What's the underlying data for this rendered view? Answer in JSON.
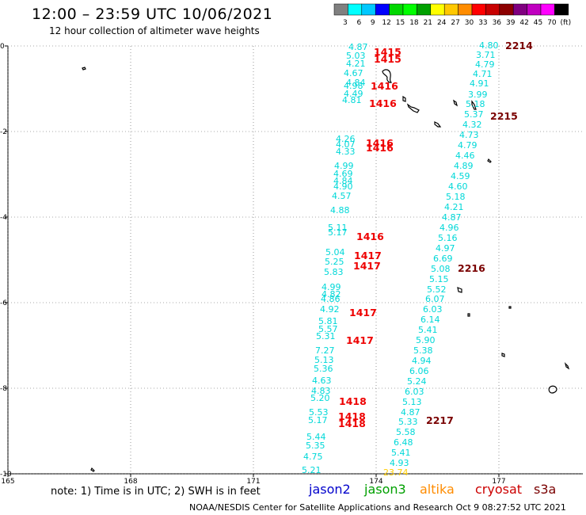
{
  "header": {
    "title": "12:00 – 23:59 UTC 10/06/2021",
    "subtitle": "12 hour collection of altimeter wave heights"
  },
  "legend": {
    "colors": [
      "#808080",
      "#00ffff",
      "#00c8ff",
      "#0000ff",
      "#00d700",
      "#00ff00",
      "#00a000",
      "#ffff00",
      "#ffc800",
      "#ff8c00",
      "#ff0000",
      "#c80000",
      "#8c0000",
      "#800080",
      "#c000c0",
      "#ff00ff",
      "#000000"
    ],
    "labels": [
      "3",
      "6",
      "9",
      "12",
      "15",
      "18",
      "21",
      "24",
      "27",
      "30",
      "33",
      "36",
      "39",
      "42",
      "45",
      "70",
      "(ft)"
    ]
  },
  "map": {
    "lat_labels": [
      "0",
      "-2",
      "-4",
      "-6",
      "-8",
      "-10"
    ],
    "lon_labels": [
      "165",
      "168",
      "171",
      "174",
      "177"
    ],
    "land_color": "#000000",
    "grid_style": "dotted"
  },
  "tracks": {
    "track_a": {
      "color": "#00d8d8",
      "values": [
        "4.87",
        "5.03",
        "4.21",
        "4.67",
        "4.84",
        "4.98",
        "4.49",
        "4.81",
        "4.26",
        "4.07",
        "4.33",
        "4.99",
        "4.69",
        "4.84",
        "4.90",
        "4.57",
        "4.88",
        "5.11",
        "5.17",
        "5.04",
        "5.25",
        "5.83",
        "4.99",
        "4.82",
        "4.86",
        "4.92",
        "5.81",
        "5.57",
        "5.31",
        "7.27",
        "5.13",
        "5.36",
        "4.63",
        "4.83",
        "5.20",
        "5.53",
        "5.17",
        "5.44",
        "5.35",
        "4.75",
        "5.21"
      ]
    },
    "track_b": {
      "color": "#00d8d8",
      "values": [
        "4.80",
        "3.71",
        "4.79",
        "4.71",
        "4.91",
        "3.99",
        "5.18",
        "5.37",
        "4.32",
        "4.73",
        "4.79",
        "4.46",
        "4.89",
        "4.59",
        "4.60",
        "5.18",
        "4.21",
        "4.87",
        "4.96",
        "5.16",
        "4.97",
        "6.69",
        "5.08",
        "5.15",
        "5.52",
        "6.07",
        "6.03",
        "6.14",
        "5.41",
        "5.90",
        "5.38",
        "4.94",
        "6.06",
        "5.24",
        "6.03",
        "5.13",
        "4.87",
        "5.33",
        "5.58",
        "6.48",
        "5.41",
        "4.93"
      ],
      "yellow_value": "23.74",
      "yellow_color": "#ffcc00"
    },
    "time_labels_a": {
      "color": "#ee0000",
      "values": [
        "1415",
        "1415",
        "1416",
        "1416",
        "1416",
        "1416",
        "1416",
        "1417",
        "1417",
        "1417",
        "1417",
        "1418",
        "1418",
        "1418"
      ]
    },
    "time_labels_b": {
      "color": "#7a0000",
      "values": [
        "2214",
        "2215",
        "2216",
        "2217"
      ]
    }
  },
  "footer": {
    "note": "note: 1) Time is in UTC; 2) SWH is in feet",
    "satellites": [
      {
        "name": "jason2",
        "color": "#0000cc"
      },
      {
        "name": "jason3",
        "color": "#00a000"
      },
      {
        "name": "altika",
        "color": "#ff8c00"
      },
      {
        "name": "cryosat",
        "color": "#cc0000"
      },
      {
        "name": "s3a",
        "color": "#7a0000"
      }
    ],
    "credit": "NOAA/NESDIS Center for Satellite Applications and Research    Oct  9 08:27:52 UTC 2021"
  }
}
